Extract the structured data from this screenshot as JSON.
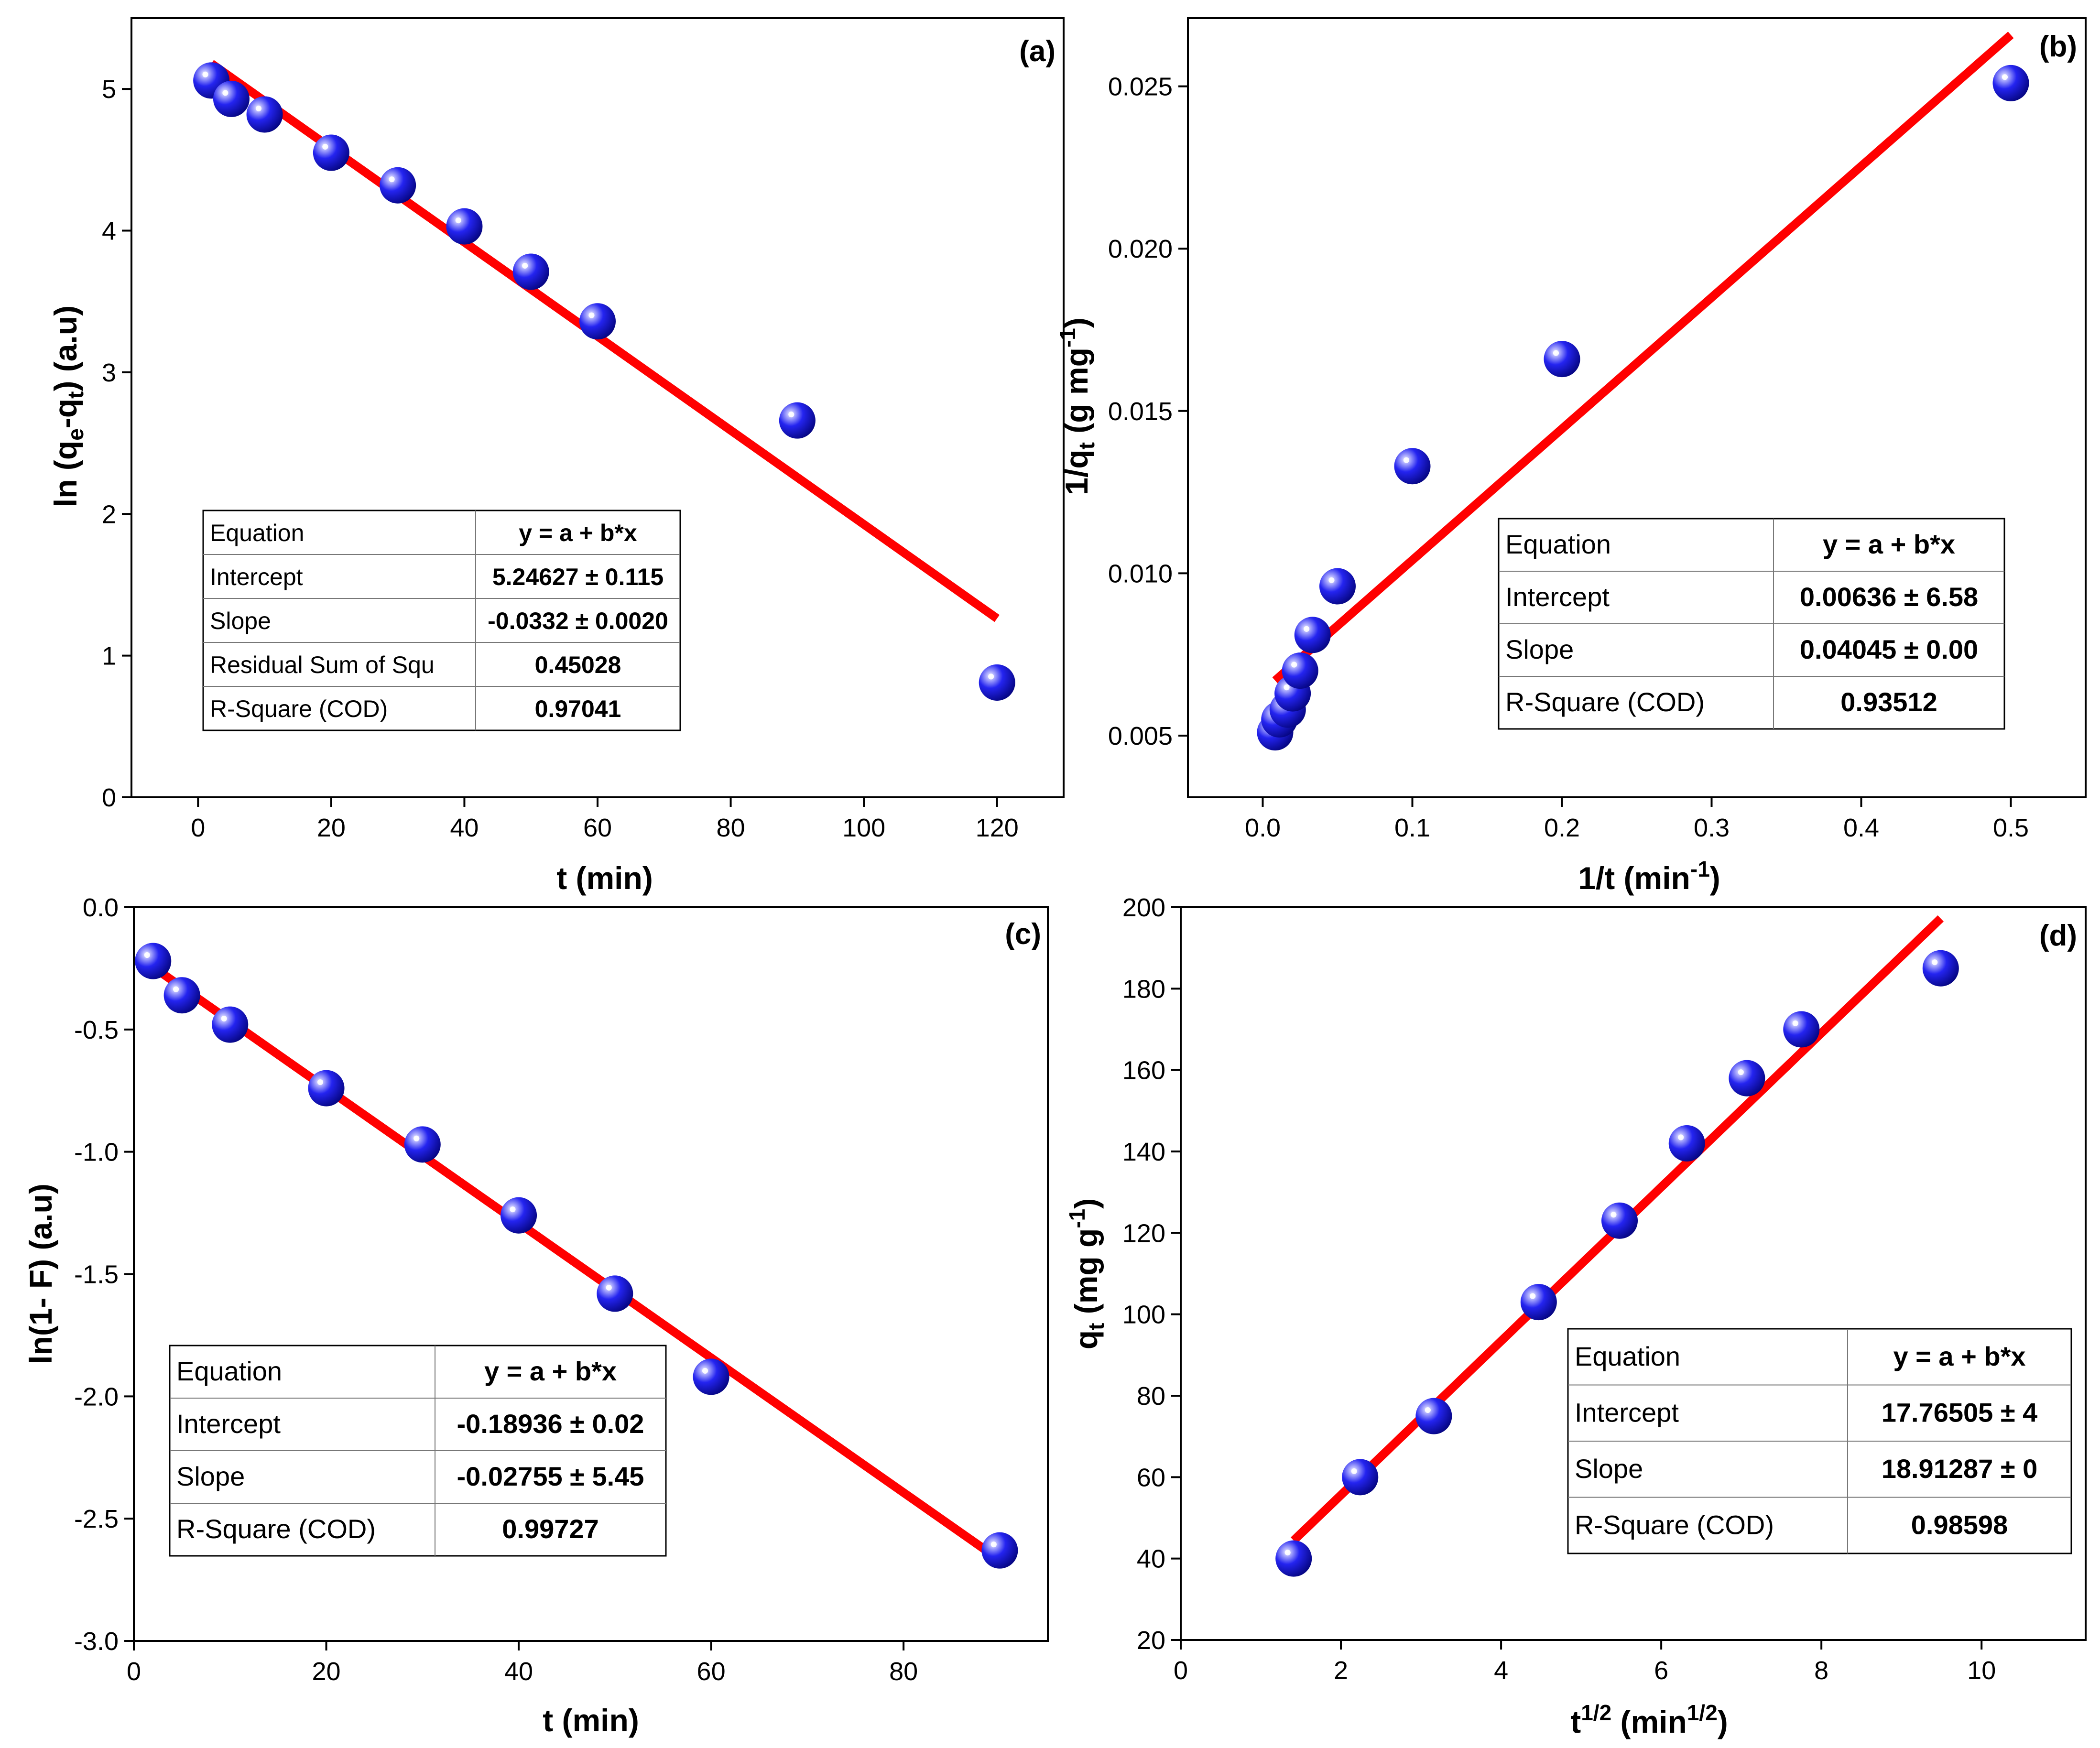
{
  "chart_data": [
    {
      "type": "scatter",
      "panel": "(a)",
      "xlabel": "t (min)",
      "ylabel": "ln (qe-qt) (a.u)",
      "xlim": [
        -10,
        130
      ],
      "ylim": [
        0,
        5.5
      ],
      "xticks": [
        0,
        20,
        40,
        60,
        80,
        100,
        120
      ],
      "xtick_labels": [
        "0",
        "20",
        "40",
        "60",
        "80",
        "100",
        "120"
      ],
      "yticks": [
        0,
        1,
        2,
        3,
        4,
        5
      ],
      "ytick_labels": [
        "0",
        "1",
        "2",
        "3",
        "4",
        "5"
      ],
      "series": [
        {
          "name": "data",
          "x": [
            2,
            5,
            10,
            20,
            30,
            40,
            50,
            60,
            90,
            120
          ],
          "y": [
            5.06,
            4.93,
            4.82,
            4.55,
            4.32,
            4.03,
            3.71,
            3.36,
            2.66,
            0.81
          ]
        }
      ],
      "fit": {
        "intercept": 5.24627,
        "slope": -0.0332,
        "x_range": [
          2,
          120
        ]
      },
      "table": [
        [
          "Equation",
          "y = a + b*x"
        ],
        [
          "Intercept",
          "5.24627 ± 0.115"
        ],
        [
          "Slope",
          "-0.0332 ± 0.0020"
        ],
        [
          "Residual Sum of Squ",
          "0.45028"
        ],
        [
          "R-Square (COD)",
          "0.97041"
        ]
      ]
    },
    {
      "type": "scatter",
      "panel": "(b)",
      "xlabel": "1/t (min-1)",
      "ylabel": "1/qt (g mg-1)",
      "xlim": [
        -0.05,
        0.55
      ],
      "ylim": [
        0.0031,
        0.0271
      ],
      "xticks": [
        0,
        0.1,
        0.2,
        0.3,
        0.4,
        0.5
      ],
      "xtick_labels": [
        "0.0",
        "0.1",
        "0.2",
        "0.3",
        "0.4",
        "0.5"
      ],
      "yticks": [
        0.005,
        0.01,
        0.015,
        0.02,
        0.025
      ],
      "ytick_labels": [
        "0.005",
        "0.010",
        "0.015",
        "0.020",
        "0.025"
      ],
      "series": [
        {
          "name": "data",
          "x": [
            0.0083,
            0.0111,
            0.0167,
            0.02,
            0.025,
            0.0333,
            0.05,
            0.1,
            0.2,
            0.5
          ],
          "y": [
            0.0051,
            0.0055,
            0.0058,
            0.0063,
            0.007,
            0.0081,
            0.0096,
            0.0133,
            0.0166,
            0.0251
          ]
        }
      ],
      "fit": {
        "intercept": 0.00636,
        "slope": 0.04045,
        "x_range": [
          0.0083,
          0.5
        ]
      },
      "table": [
        [
          "Equation",
          "y = a + b*x"
        ],
        [
          "Intercept",
          "0.00636 ± 6.58"
        ],
        [
          "Slope",
          "0.04045 ± 0.00"
        ],
        [
          "R-Square (COD)",
          "0.93512"
        ]
      ]
    },
    {
      "type": "scatter",
      "panel": "(c)",
      "xlabel": "t (min)",
      "ylabel": "ln(1- F) (a.u)",
      "xlim": [
        0,
        95
      ],
      "ylim": [
        -3.0,
        0.0
      ],
      "xticks": [
        0,
        20,
        40,
        60,
        80
      ],
      "xtick_labels": [
        "0",
        "20",
        "40",
        "60",
        "80"
      ],
      "yticks": [
        0,
        -0.5,
        -1.0,
        -1.5,
        -2.0,
        -2.5,
        -3.0
      ],
      "ytick_labels": [
        "0.0",
        "-0.5",
        "-1.0",
        "-1.5",
        "-2.0",
        "-2.5",
        "-3.0"
      ],
      "series": [
        {
          "name": "data",
          "x": [
            2,
            5,
            10,
            20,
            30,
            40,
            50,
            60,
            90
          ],
          "y": [
            -0.22,
            -0.36,
            -0.48,
            -0.74,
            -0.97,
            -1.26,
            -1.58,
            -1.92,
            -2.63
          ]
        }
      ],
      "fit": {
        "intercept": -0.18936,
        "slope": -0.02755,
        "x_range": [
          2,
          90
        ]
      },
      "table": [
        [
          "Equation",
          "y = a + b*x"
        ],
        [
          "Intercept",
          "-0.18936 ± 0.02"
        ],
        [
          "Slope",
          "-0.02755 ± 5.45"
        ],
        [
          "R-Square (COD)",
          "0.99727"
        ]
      ]
    },
    {
      "type": "scatter",
      "panel": "(d)",
      "xlabel": "t1/2 (min1/2)",
      "ylabel": "qt (mg g-1)",
      "xlim": [
        0,
        11.3
      ],
      "ylim": [
        20,
        200
      ],
      "xticks": [
        0,
        2,
        4,
        6,
        8,
        10
      ],
      "xtick_labels": [
        "0",
        "2",
        "4",
        "6",
        "8",
        "10"
      ],
      "yticks": [
        20,
        40,
        60,
        80,
        100,
        120,
        140,
        160,
        180,
        200
      ],
      "ytick_labels": [
        "20",
        "40",
        "60",
        "80",
        "100",
        "120",
        "140",
        "160",
        "180",
        "200"
      ],
      "series": [
        {
          "name": "data",
          "x": [
            1.41,
            2.24,
            3.16,
            4.47,
            5.48,
            6.32,
            7.07,
            7.75,
            9.49
          ],
          "y": [
            40,
            60,
            75,
            103,
            123,
            142,
            158,
            170,
            185
          ]
        }
      ],
      "fit": {
        "intercept": 17.76505,
        "slope": 18.91287,
        "x_range": [
          1.41,
          9.49
        ]
      },
      "table": [
        [
          "Equation",
          "y = a + b*x"
        ],
        [
          "Intercept",
          "17.76505 ± 4"
        ],
        [
          "Slope",
          "18.91287 ± 0"
        ],
        [
          "R-Square (COD)",
          "0.98598"
        ]
      ]
    }
  ]
}
